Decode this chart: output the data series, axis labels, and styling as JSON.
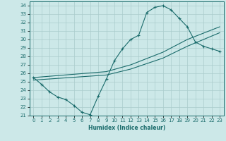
{
  "xlabel": "Humidex (Indice chaleur)",
  "bg_color": "#cce8e8",
  "grid_color": "#aacccc",
  "line_color": "#1a6b6b",
  "xlim": [
    -0.5,
    23.5
  ],
  "ylim": [
    21,
    34.5
  ],
  "xticks": [
    0,
    1,
    2,
    3,
    4,
    5,
    6,
    7,
    8,
    9,
    10,
    11,
    12,
    13,
    14,
    15,
    16,
    17,
    18,
    19,
    20,
    21,
    22,
    23
  ],
  "yticks": [
    21,
    22,
    23,
    24,
    25,
    26,
    27,
    28,
    29,
    30,
    31,
    32,
    33,
    34
  ],
  "main_x": [
    0,
    1,
    2,
    3,
    4,
    5,
    6,
    7,
    8,
    9,
    10,
    11,
    12,
    13,
    14,
    15,
    16,
    17,
    18,
    19,
    20,
    21,
    22,
    23
  ],
  "main_y": [
    25.5,
    24.7,
    23.8,
    23.2,
    22.9,
    22.2,
    21.4,
    21.1,
    23.3,
    25.3,
    27.5,
    28.9,
    30.0,
    30.5,
    33.2,
    33.8,
    34.0,
    33.5,
    32.5,
    31.5,
    29.7,
    29.2,
    28.9,
    28.6
  ],
  "line1_x": [
    0,
    9,
    12,
    16,
    19,
    23
  ],
  "line1_y": [
    25.5,
    26.2,
    27.0,
    28.5,
    30.0,
    31.5
  ],
  "line2_x": [
    0,
    9,
    12,
    16,
    19,
    23
  ],
  "line2_y": [
    25.2,
    25.8,
    26.5,
    27.8,
    29.2,
    30.8
  ]
}
